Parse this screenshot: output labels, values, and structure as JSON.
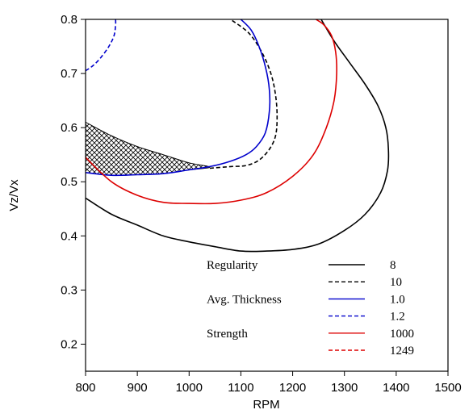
{
  "chart_data": {
    "type": "line",
    "xlabel": "RPM",
    "ylabel": "Vz/Vx",
    "xlim": [
      800,
      1500
    ],
    "ylim": [
      0.15,
      0.8
    ],
    "xticks": [
      800,
      900,
      1000,
      1100,
      1200,
      1300,
      1400,
      1500
    ],
    "yticks": [
      0.2,
      0.3,
      0.4,
      0.5,
      0.6,
      0.7,
      0.8
    ],
    "grid": false,
    "legend_position": "bottom-right",
    "legend": [
      {
        "group": "Regularity",
        "label": "8",
        "color": "#000000",
        "dash": "solid"
      },
      {
        "group": "",
        "label": "10",
        "color": "#000000",
        "dash": "dashed"
      },
      {
        "group": "Avg. Thickness",
        "label": "1.0",
        "color": "#0000cc",
        "dash": "solid"
      },
      {
        "group": "",
        "label": "1.2",
        "color": "#0000cc",
        "dash": "dashed"
      },
      {
        "group": "Strength",
        "label": "1000",
        "color": "#dd0000",
        "dash": "solid"
      },
      {
        "group": "",
        "label": "1249",
        "color": "#dd0000",
        "dash": "dashed"
      }
    ],
    "series": [
      {
        "name": "Regularity 8",
        "color": "#000000",
        "dash": "solid",
        "x": [
          800,
          850,
          900,
          950,
          1000,
          1050,
          1100,
          1150,
          1200,
          1250,
          1300,
          1340,
          1370,
          1383,
          1385,
          1380,
          1365,
          1340,
          1310,
          1280,
          1255
        ],
        "y": [
          0.47,
          0.44,
          0.42,
          0.4,
          0.389,
          0.38,
          0.372,
          0.372,
          0.375,
          0.385,
          0.41,
          0.44,
          0.48,
          0.52,
          0.56,
          0.6,
          0.64,
          0.68,
          0.72,
          0.76,
          0.8
        ]
      },
      {
        "name": "Regularity 10",
        "color": "#000000",
        "dash": "dashed",
        "x": [
          1040,
          1080,
          1110,
          1135,
          1155,
          1167,
          1170,
          1167,
          1158,
          1140,
          1115,
          1080
        ],
        "y": [
          0.525,
          0.528,
          0.53,
          0.54,
          0.56,
          0.585,
          0.62,
          0.66,
          0.7,
          0.74,
          0.775,
          0.8
        ]
      },
      {
        "name": "Avg. Thickness 1.0",
        "color": "#0000cc",
        "dash": "solid",
        "x": [
          800,
          850,
          900,
          950,
          1000,
          1040,
          1080,
          1110,
          1130,
          1147,
          1155,
          1155,
          1148,
          1135,
          1120,
          1100
        ],
        "y": [
          0.517,
          0.512,
          0.513,
          0.515,
          0.522,
          0.528,
          0.538,
          0.55,
          0.565,
          0.59,
          0.63,
          0.67,
          0.71,
          0.75,
          0.78,
          0.8
        ]
      },
      {
        "name": "Avg. Thickness 1.2",
        "color": "#0000cc",
        "dash": "dashed",
        "x": [
          800,
          815,
          830,
          845,
          855,
          858,
          858
        ],
        "y": [
          0.705,
          0.715,
          0.73,
          0.75,
          0.77,
          0.79,
          0.8
        ]
      },
      {
        "name": "Strength 1000",
        "color": "#dd0000",
        "dash": "solid",
        "x": [
          800,
          850,
          900,
          950,
          1000,
          1050,
          1100,
          1150,
          1200,
          1240,
          1265,
          1280,
          1285,
          1283,
          1275,
          1260,
          1245
        ],
        "y": [
          0.545,
          0.5,
          0.475,
          0.462,
          0.46,
          0.46,
          0.466,
          0.48,
          0.51,
          0.55,
          0.6,
          0.65,
          0.7,
          0.74,
          0.77,
          0.79,
          0.8
        ]
      }
    ],
    "regions": [
      {
        "fill": "crosshatch",
        "x": [
          800,
          850,
          900,
          950,
          1000,
          1040,
          1000,
          950,
          900,
          850,
          800
        ],
        "y": [
          0.61,
          0.585,
          0.565,
          0.55,
          0.535,
          0.527,
          0.522,
          0.515,
          0.513,
          0.512,
          0.517
        ]
      }
    ]
  }
}
